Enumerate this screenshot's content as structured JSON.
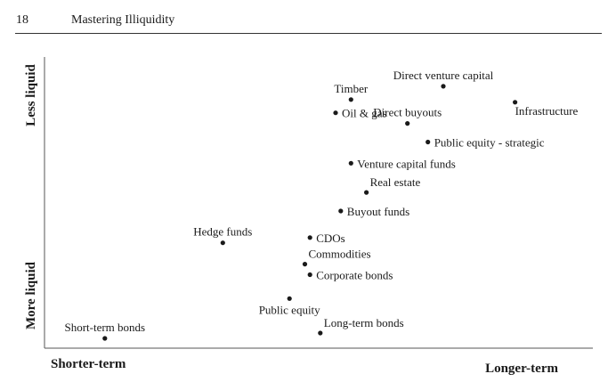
{
  "header": {
    "page_number": "18",
    "running_title": "Mastering Illiquidity"
  },
  "chart_data": {
    "type": "scatter",
    "title": "",
    "xlabel": "",
    "ylabel": "",
    "x_axis_ends": {
      "low": "Shorter-term",
      "high": "Longer-term"
    },
    "y_axis_ends": {
      "low": "More liquid",
      "high": "Less liquid"
    },
    "xlim": [
      0,
      10
    ],
    "ylim": [
      0,
      10
    ],
    "grid": false,
    "legend": "none",
    "point_color": "#1a1a1a",
    "points": [
      {
        "name": "Direct venture capital",
        "x": 7.5,
        "y": 9.5,
        "label_side": "above"
      },
      {
        "name": "Infrastructure",
        "x": 8.9,
        "y": 8.9,
        "label_side": "below-right"
      },
      {
        "name": "Timber",
        "x": 5.7,
        "y": 9.0,
        "label_side": "above"
      },
      {
        "name": "Oil & gas",
        "x": 5.4,
        "y": 8.5,
        "label_side": "right"
      },
      {
        "name": "Direct buyouts",
        "x": 6.8,
        "y": 8.1,
        "label_side": "above"
      },
      {
        "name": "Public equity - strategic",
        "x": 7.2,
        "y": 7.4,
        "label_side": "right"
      },
      {
        "name": "Venture capital funds",
        "x": 5.7,
        "y": 6.6,
        "label_side": "right"
      },
      {
        "name": "Real estate",
        "x": 6.0,
        "y": 5.5,
        "label_side": "above-right"
      },
      {
        "name": "Buyout funds",
        "x": 5.5,
        "y": 4.8,
        "label_side": "right"
      },
      {
        "name": "Hedge funds",
        "x": 3.2,
        "y": 3.6,
        "label_side": "above"
      },
      {
        "name": "CDOs",
        "x": 4.9,
        "y": 3.8,
        "label_side": "right"
      },
      {
        "name": "Commodities",
        "x": 4.8,
        "y": 2.8,
        "label_side": "above-right"
      },
      {
        "name": "Corporate bonds",
        "x": 4.9,
        "y": 2.4,
        "label_side": "right"
      },
      {
        "name": "Public equity",
        "x": 4.5,
        "y": 1.5,
        "label_side": "below"
      },
      {
        "name": "Short-term bonds",
        "x": 0.9,
        "y": 0.0,
        "label_side": "above"
      },
      {
        "name": "Long-term bonds",
        "x": 5.1,
        "y": 0.2,
        "label_side": "above-right"
      }
    ]
  }
}
